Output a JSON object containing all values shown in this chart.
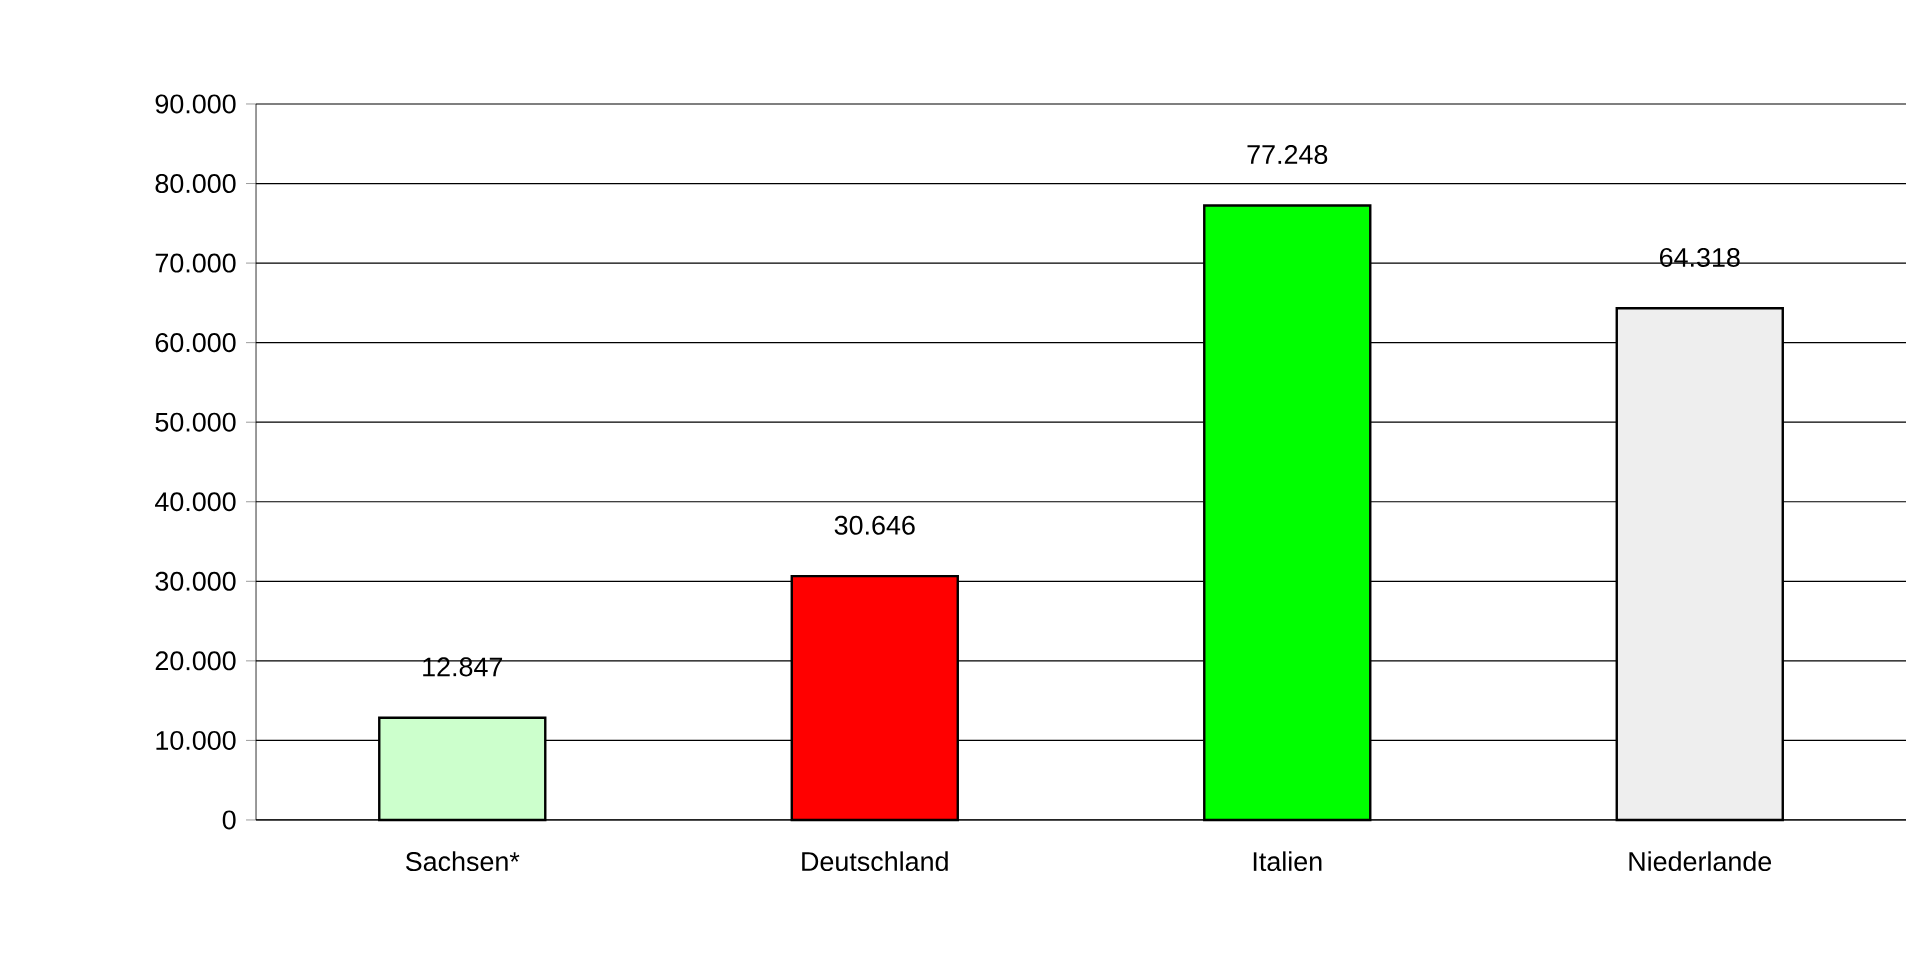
{
  "chart_data": {
    "type": "bar",
    "categories": [
      "Sachsen*",
      "Deutschland",
      "Italien",
      "Niederlande"
    ],
    "values": [
      12847,
      30646,
      77248,
      64318
    ],
    "colors": [
      "#ccffcc",
      "#ff0000",
      "#00ff00",
      "#eeeeee"
    ],
    "value_labels": [
      "12.847",
      "30.646",
      "77.248",
      "64.318"
    ],
    "ylim": [
      0,
      90000
    ],
    "yticks": [
      0,
      {
        "value": 10000,
        "label": "10.000"
      },
      {
        "value": 20000,
        "label": "20.000"
      },
      {
        "value": 30000,
        "label": "30.000"
      },
      {
        "value": 40000,
        "label": "40.000"
      },
      {
        "value": 50000,
        "label": "50.000"
      },
      {
        "value": 60000,
        "label": "60.000"
      },
      {
        "value": 70000,
        "label": "70.000"
      },
      {
        "value": 80000,
        "label": "80.000"
      },
      {
        "value": 90000,
        "label": "90.000"
      }
    ],
    "grid": "y"
  }
}
